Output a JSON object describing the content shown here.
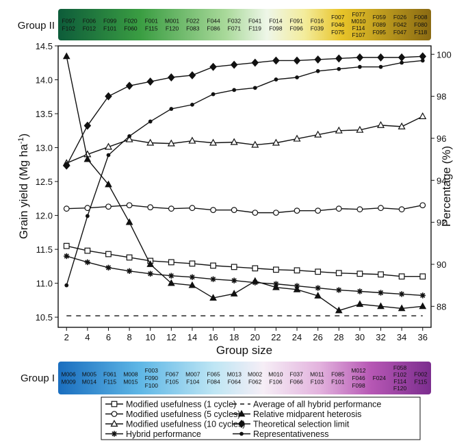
{
  "chart_data": {
    "type": "line",
    "xlabel": "Group size",
    "ylabel": "Grain yield (Mg ha",
    "ylabel_sup": "-1",
    "ylabel_close": ")",
    "y2label": "Percentage (%)",
    "x": [
      2,
      4,
      6,
      8,
      10,
      12,
      14,
      16,
      18,
      20,
      22,
      24,
      26,
      28,
      30,
      32,
      34,
      36
    ],
    "xlim": [
      1.2,
      36.8
    ],
    "ylim": [
      10.35,
      14.5
    ],
    "y2lim": [
      87.0,
      100.4
    ],
    "xticks": [
      2,
      4,
      6,
      8,
      10,
      12,
      14,
      16,
      18,
      20,
      22,
      24,
      26,
      28,
      30,
      32,
      34,
      36
    ],
    "yticks": [
      10.5,
      11.0,
      11.5,
      12.0,
      12.5,
      13.0,
      13.5,
      14.0,
      14.5
    ],
    "y2ticks": [
      88,
      90,
      92,
      94,
      96,
      98,
      100
    ],
    "series": [
      {
        "name": "Modified usefulness (1 cycle)",
        "axis": "left",
        "marker": "square",
        "dash": "solid",
        "values": [
          11.55,
          11.48,
          11.43,
          11.38,
          11.33,
          11.31,
          11.29,
          11.26,
          11.24,
          11.22,
          11.2,
          11.19,
          11.17,
          11.15,
          11.14,
          11.13,
          11.1,
          11.1
        ]
      },
      {
        "name": "Modified usefulness (5 cycles)",
        "axis": "left",
        "marker": "circle",
        "dash": "solid",
        "values": [
          12.1,
          12.11,
          12.13,
          12.15,
          12.12,
          12.1,
          12.11,
          12.08,
          12.08,
          12.04,
          12.04,
          12.07,
          12.07,
          12.1,
          12.09,
          12.11,
          12.09,
          12.15
        ]
      },
      {
        "name": "Modified usefulness (10 cycles)",
        "axis": "left",
        "marker": "triangle-open",
        "dash": "solid",
        "values": [
          12.77,
          12.9,
          13.01,
          13.12,
          13.07,
          13.06,
          13.1,
          13.07,
          13.08,
          13.04,
          13.07,
          13.13,
          13.19,
          13.25,
          13.26,
          13.33,
          13.31,
          13.46
        ]
      },
      {
        "name": "Hybrid performance",
        "axis": "left",
        "marker": "star",
        "dash": "solid",
        "values": [
          11.4,
          11.31,
          11.23,
          11.18,
          11.14,
          11.11,
          11.09,
          11.06,
          11.04,
          11.01,
          10.99,
          10.96,
          10.93,
          10.9,
          10.88,
          10.86,
          10.84,
          10.82
        ]
      },
      {
        "name": "Average of all hybrid performance",
        "axis": "left",
        "marker": "none",
        "dash": "dashed",
        "values": [
          10.52,
          10.52,
          10.52,
          10.52,
          10.52,
          10.52,
          10.52,
          10.52,
          10.52,
          10.52,
          10.52,
          10.52,
          10.52,
          10.52,
          10.52,
          10.52,
          10.52,
          10.52
        ]
      },
      {
        "name": "Relative midparent heterosis",
        "axis": "right",
        "marker": "triangle-filled",
        "dash": "solid",
        "values": [
          99.9,
          95.0,
          93.8,
          92.0,
          90.0,
          89.1,
          89.0,
          88.4,
          88.6,
          89.2,
          88.9,
          88.8,
          88.5,
          87.8,
          88.1,
          88.0,
          87.9,
          88.0
        ]
      },
      {
        "name": "Theoretical selection limit",
        "axis": "right",
        "marker": "diamond",
        "dash": "solid",
        "values": [
          94.7,
          96.6,
          98.0,
          98.5,
          98.7,
          98.9,
          99.0,
          99.4,
          99.5,
          99.6,
          99.7,
          99.7,
          99.75,
          99.8,
          99.85,
          99.85,
          99.85,
          99.9
        ]
      },
      {
        "name": "Representativeness",
        "axis": "right",
        "marker": "dot",
        "dash": "solid",
        "values": [
          89.0,
          92.3,
          95.2,
          96.1,
          96.8,
          97.4,
          97.6,
          98.1,
          98.3,
          98.4,
          98.8,
          98.9,
          99.2,
          99.3,
          99.4,
          99.4,
          99.6,
          99.7
        ]
      }
    ],
    "legend_position": "bottom",
    "group_bars": [
      {
        "label": "Group II",
        "position": "top",
        "colors": [
          "#0a5a3c",
          "#8a6a12"
        ],
        "cells": [
          [
            "F097",
            "F102"
          ],
          [
            "F006",
            "F012"
          ],
          [
            "F099",
            "F101"
          ],
          [
            "F020",
            "F060"
          ],
          [
            "F001",
            "F115"
          ],
          [
            "M001",
            "F120"
          ],
          [
            "F022",
            "F083"
          ],
          [
            "F044",
            "F086"
          ],
          [
            "F032",
            "F071"
          ],
          [
            "F041",
            "F119"
          ],
          [
            "F014",
            "F098"
          ],
          [
            "F091",
            "F096"
          ],
          [
            "F016",
            "F039"
          ],
          [
            "F007",
            "F046",
            "F075"
          ],
          [
            "F077",
            "M010",
            "F114",
            "F107"
          ],
          [
            "F059",
            "F089",
            "F095"
          ],
          [
            "F026",
            "F042",
            "F047"
          ],
          [
            "F008",
            "F080",
            "F118"
          ]
        ]
      },
      {
        "label": "Group I",
        "position": "bottom",
        "colors": [
          "#1a6ebf",
          "#7b2d8e"
        ],
        "cells": [
          [
            "M006",
            "M009"
          ],
          [
            "M005",
            "M014"
          ],
          [
            "F061",
            "F115"
          ],
          [
            "M008",
            "M015"
          ],
          [
            "F003",
            "F090",
            "F100"
          ],
          [
            "F067",
            "F105"
          ],
          [
            "M007",
            "F104"
          ],
          [
            "F065",
            "F084"
          ],
          [
            "M013",
            "F064"
          ],
          [
            "M002",
            "F062"
          ],
          [
            "M010",
            "F106"
          ],
          [
            "F037",
            "F066"
          ],
          [
            "M011",
            "F103"
          ],
          [
            "F085",
            "F101"
          ],
          [
            "M012",
            "F046",
            "F098"
          ],
          [
            "F024"
          ],
          [
            "F058",
            "F102",
            "F114",
            "F120"
          ],
          [
            "F002",
            "F115"
          ]
        ]
      }
    ]
  }
}
